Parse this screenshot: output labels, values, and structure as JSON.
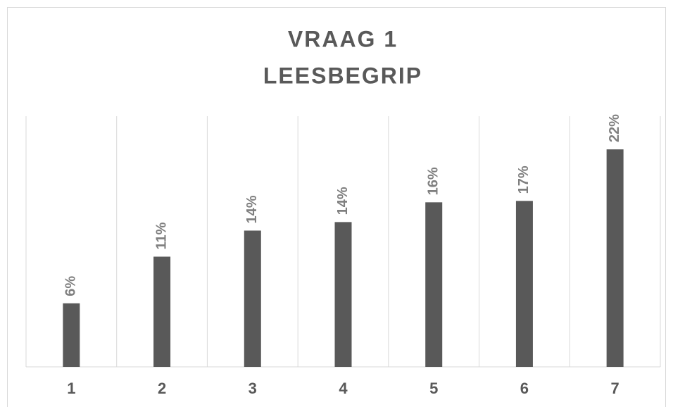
{
  "chart_data": {
    "type": "bar",
    "title": [
      "VRAAG 1",
      "LEESBEGRIP"
    ],
    "categories": [
      "1",
      "2",
      "3",
      "4",
      "5",
      "6",
      "7"
    ],
    "values": [
      6.34,
      10.99,
      13.59,
      14.44,
      16.41,
      16.55,
      21.69
    ],
    "value_labels": [
      "6%",
      "11%",
      "14%",
      "14%",
      "16%",
      "17%",
      "22%"
    ],
    "color": "#595959",
    "ylim": [
      0,
      25
    ]
  }
}
